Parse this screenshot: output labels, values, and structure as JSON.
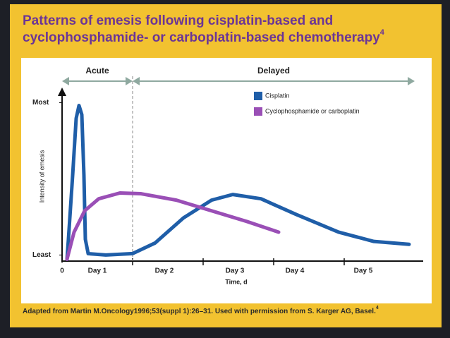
{
  "chart_data": {
    "type": "line",
    "title_lines": [
      "Patterns of emesis following cisplatin-based and",
      "cyclophosphamide- or carboplatin-based chemotherapy"
    ],
    "title_superscript": "4",
    "ylabel": "Intensity of emesis",
    "xlabel": "Time, d",
    "xlim": [
      0,
      5.1
    ],
    "ylim": [
      -0.4,
      10.9
    ],
    "yticks": [
      {
        "value": 0,
        "label": "Least"
      },
      {
        "value": 10,
        "label": "Most"
      }
    ],
    "xticks": [
      1,
      2,
      3,
      4
    ],
    "xlabels": [
      {
        "value": 0,
        "label": "0"
      },
      {
        "value": 0.5,
        "label": "Day 1"
      },
      {
        "value": 1.45,
        "label": "Day 2"
      },
      {
        "value": 2.45,
        "label": "Day 3"
      },
      {
        "value": 3.3,
        "label": "Day 4"
      },
      {
        "value": 4.27,
        "label": "Day 5"
      }
    ],
    "phases": [
      {
        "label": "Acute",
        "start": 0,
        "end": 1
      },
      {
        "label": "Delayed",
        "start": 1,
        "end": 5
      }
    ],
    "series": [
      {
        "name": "Cisplatin",
        "color": "#1f5ea8",
        "x": [
          0.07,
          0.09,
          0.15,
          0.2,
          0.24,
          0.28,
          0.31,
          0.33,
          0.37,
          0.62,
          1.0,
          1.32,
          1.72,
          2.12,
          2.42,
          2.82,
          3.32,
          3.92,
          4.42,
          4.92
        ],
        "values": [
          -0.28,
          1.03,
          5.23,
          8.97,
          9.81,
          9.21,
          5.23,
          1.03,
          0.09,
          0,
          0.09,
          0.79,
          2.43,
          3.6,
          3.97,
          3.69,
          2.66,
          1.5,
          0.89,
          0.7
        ]
      },
      {
        "name": "Cyclophosphamide or carboplatin",
        "color": "#9a4fb6",
        "x": [
          0.07,
          0.17,
          0.32,
          0.52,
          0.82,
          1.12,
          1.62,
          2.12,
          2.62,
          3.07
        ],
        "values": [
          -0.28,
          1.5,
          2.9,
          3.69,
          4.07,
          4.02,
          3.6,
          2.9,
          2.2,
          1.5
        ]
      }
    ],
    "footer": "Adapted from Martin M.Oncology1996;53(suppl 1):26–31. Used with permission from S. Karger AG, Basel.",
    "footer_superscript": "4"
  }
}
